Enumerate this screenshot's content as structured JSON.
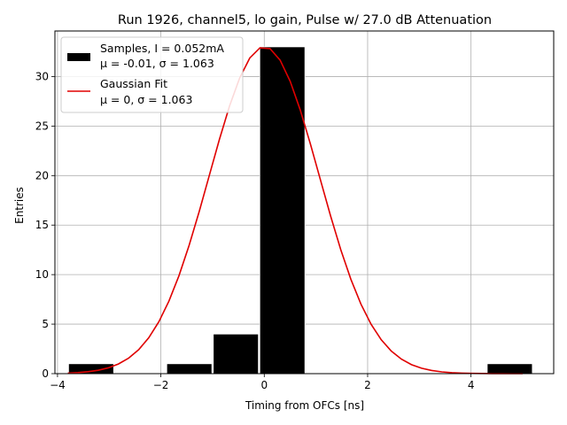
{
  "chart_data": {
    "type": "bar",
    "title": "Run 1926, channel5, lo gain, Pulse w/ 27.0 dB Attenuation",
    "xlabel": "Timing from OFCs [ns]",
    "ylabel": "Entries",
    "xlim": [
      -4.05,
      5.6
    ],
    "ylim": [
      0,
      34.6
    ],
    "xticks": [
      -4,
      -2,
      0,
      2,
      4
    ],
    "yticks": [
      0,
      5,
      10,
      15,
      20,
      25,
      30
    ],
    "grid": true,
    "legend_position": "top-left",
    "bars": {
      "name_line1": "Samples, I = 0.052mA",
      "name_line2": "μ = -0.01, σ = 1.063",
      "color": "#000000",
      "edges": [
        -3.8,
        -2.9,
        -1.9,
        -1.0,
        -0.1,
        0.8,
        4.3,
        5.2
      ],
      "bins": [
        {
          "x0": -3.8,
          "x1": -2.9,
          "value": 1
        },
        {
          "x0": -1.9,
          "x1": -1.0,
          "value": 1
        },
        {
          "x0": -1.0,
          "x1": -0.1,
          "value": 4
        },
        {
          "x0": -0.1,
          "x1": 0.8,
          "value": 33
        },
        {
          "x0": 4.3,
          "x1": 5.2,
          "value": 1
        }
      ]
    },
    "fit": {
      "name_line1": "Gaussian Fit",
      "name_line2": "μ = 0, σ = 1.063",
      "color": "#e00000",
      "mu": 0,
      "sigma": 1.063,
      "amplitude": 33,
      "x_range": [
        -3.8,
        5.0
      ]
    }
  }
}
